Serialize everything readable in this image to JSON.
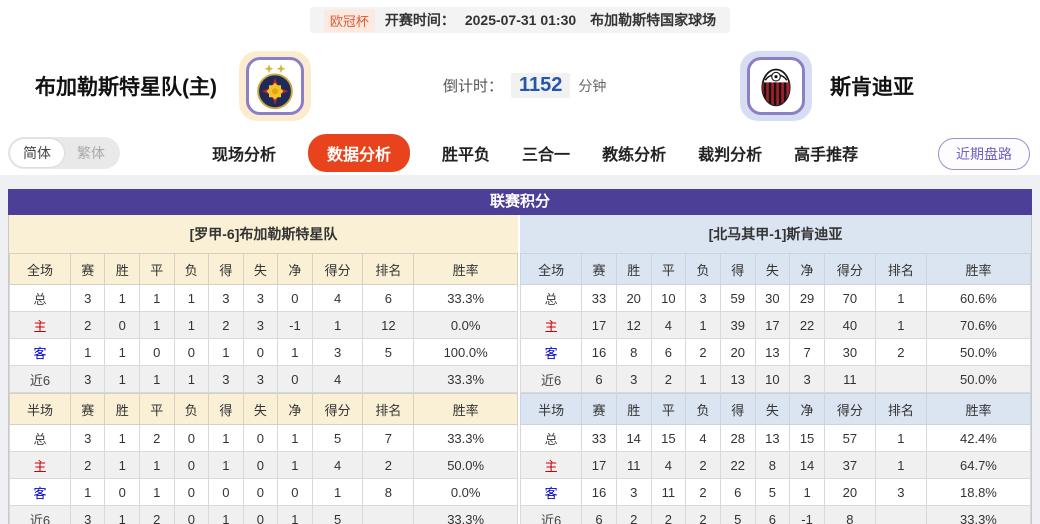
{
  "match_header": {
    "league_badge": "欧冠杯",
    "kickoff_label": "开赛时间：",
    "kickoff_time": "2025-07-31 01:30",
    "venue": "布加勒斯特国家球场",
    "home_team": "布加勒斯特星队(主)",
    "away_team": "斯肯迪亚",
    "countdown_label": "倒计时：",
    "countdown_value": "1152",
    "countdown_unit": "分钟"
  },
  "nav": {
    "lang_simplified": "简体",
    "lang_traditional": "繁体",
    "tabs": [
      {
        "label": "现场分析",
        "active": false
      },
      {
        "label": "数据分析",
        "active": true
      },
      {
        "label": "胜平负",
        "active": false
      },
      {
        "label": "三合一",
        "active": false
      },
      {
        "label": "教练分析",
        "active": false
      },
      {
        "label": "裁判分析",
        "active": false
      },
      {
        "label": "高手推荐",
        "active": false
      }
    ],
    "recent_trend_button": "近期盘路"
  },
  "colors": {
    "standings_header": "#4c3f97",
    "active_tab": "#e8431c",
    "home_row_label": "#cc0000",
    "away_row_label": "#0000cc",
    "countdown_value": "#2457a7",
    "left_theme": "#faf0d6",
    "right_theme": "#dbe5f2"
  },
  "standings": {
    "title": "联赛积分",
    "left": {
      "team_title": "[罗甲-6]布加勒斯特星队",
      "full": {
        "header": [
          "全场",
          "赛",
          "胜",
          "平",
          "负",
          "得",
          "失",
          "净",
          "得分",
          "排名",
          "胜率"
        ],
        "rows": [
          {
            "cls": "total",
            "cells": [
              "总",
              "3",
              "1",
              "1",
              "1",
              "3",
              "3",
              "0",
              "4",
              "6",
              "33.3%"
            ]
          },
          {
            "cls": "home",
            "cells": [
              "主",
              "2",
              "0",
              "1",
              "1",
              "2",
              "3",
              "-1",
              "1",
              "12",
              "0.0%"
            ]
          },
          {
            "cls": "away",
            "cells": [
              "客",
              "1",
              "1",
              "0",
              "0",
              "1",
              "0",
              "1",
              "3",
              "5",
              "100.0%"
            ]
          },
          {
            "cls": "recent",
            "cells": [
              "近6",
              "3",
              "1",
              "1",
              "1",
              "3",
              "3",
              "0",
              "4",
              "",
              "33.3%"
            ]
          }
        ]
      },
      "half": {
        "header": [
          "半场",
          "赛",
          "胜",
          "平",
          "负",
          "得",
          "失",
          "净",
          "得分",
          "排名",
          "胜率"
        ],
        "rows": [
          {
            "cls": "total",
            "cells": [
              "总",
              "3",
              "1",
              "2",
              "0",
              "1",
              "0",
              "1",
              "5",
              "7",
              "33.3%"
            ]
          },
          {
            "cls": "home",
            "cells": [
              "主",
              "2",
              "1",
              "1",
              "0",
              "1",
              "0",
              "1",
              "4",
              "2",
              "50.0%"
            ]
          },
          {
            "cls": "away",
            "cells": [
              "客",
              "1",
              "0",
              "1",
              "0",
              "0",
              "0",
              "0",
              "1",
              "8",
              "0.0%"
            ]
          },
          {
            "cls": "recent",
            "cells": [
              "近6",
              "3",
              "1",
              "2",
              "0",
              "1",
              "0",
              "1",
              "5",
              "",
              "33.3%"
            ]
          }
        ]
      }
    },
    "right": {
      "team_title": "[北马其甲-1]斯肯迪亚",
      "full": {
        "header": [
          "全场",
          "赛",
          "胜",
          "平",
          "负",
          "得",
          "失",
          "净",
          "得分",
          "排名",
          "胜率"
        ],
        "rows": [
          {
            "cls": "total",
            "cells": [
              "总",
              "33",
              "20",
              "10",
              "3",
              "59",
              "30",
              "29",
              "70",
              "1",
              "60.6%"
            ]
          },
          {
            "cls": "home",
            "cells": [
              "主",
              "17",
              "12",
              "4",
              "1",
              "39",
              "17",
              "22",
              "40",
              "1",
              "70.6%"
            ]
          },
          {
            "cls": "away",
            "cells": [
              "客",
              "16",
              "8",
              "6",
              "2",
              "20",
              "13",
              "7",
              "30",
              "2",
              "50.0%"
            ]
          },
          {
            "cls": "recent",
            "cells": [
              "近6",
              "6",
              "3",
              "2",
              "1",
              "13",
              "10",
              "3",
              "11",
              "",
              "50.0%"
            ]
          }
        ]
      },
      "half": {
        "header": [
          "半场",
          "赛",
          "胜",
          "平",
          "负",
          "得",
          "失",
          "净",
          "得分",
          "排名",
          "胜率"
        ],
        "rows": [
          {
            "cls": "total",
            "cells": [
              "总",
              "33",
              "14",
              "15",
              "4",
              "28",
              "13",
              "15",
              "57",
              "1",
              "42.4%"
            ]
          },
          {
            "cls": "home",
            "cells": [
              "主",
              "17",
              "11",
              "4",
              "2",
              "22",
              "8",
              "14",
              "37",
              "1",
              "64.7%"
            ]
          },
          {
            "cls": "away",
            "cells": [
              "客",
              "16",
              "3",
              "11",
              "2",
              "6",
              "5",
              "1",
              "20",
              "3",
              "18.8%"
            ]
          },
          {
            "cls": "recent",
            "cells": [
              "近6",
              "6",
              "2",
              "2",
              "2",
              "5",
              "6",
              "-1",
              "8",
              "",
              "33.3%"
            ]
          }
        ]
      }
    }
  }
}
